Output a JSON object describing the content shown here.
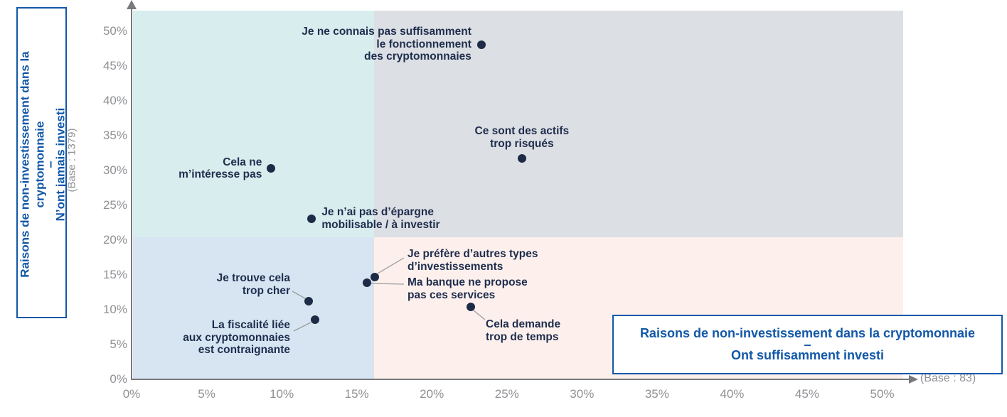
{
  "chart_data": {
    "type": "scatter",
    "description": "Quadrant scatter plot of reasons for non-investment in cryptocurrency; x-axis = % among those who have invested sufficiently, y-axis = % among those who never invested",
    "x_axis": {
      "ticks": [
        "0%",
        "5%",
        "10%",
        "15%",
        "20%",
        "25%",
        "30%",
        "35%",
        "40%",
        "45%",
        "50%"
      ],
      "range_percent": [
        0,
        52
      ],
      "base_label": "(Base : 83)"
    },
    "y_axis": {
      "ticks": [
        "0%",
        "5%",
        "10%",
        "15%",
        "20%",
        "25%",
        "30%",
        "35%",
        "40%",
        "45%",
        "50%"
      ],
      "range_percent": [
        0,
        53
      ],
      "base_label": "(Base : 1379)"
    },
    "quadrant_split": {
      "x_percent": 16,
      "y_percent": 20
    },
    "points": [
      {
        "id": "connaissance",
        "x": 23.3,
        "y": 48.0,
        "label": [
          "Je ne connais pas suffisamment",
          "le fonctionnement",
          "des cryptomonnaies"
        ]
      },
      {
        "id": "actifs-risques",
        "x": 26.0,
        "y": 31.6,
        "label": [
          "Ce sont des actifs",
          "trop risqués"
        ]
      },
      {
        "id": "pas-interesse",
        "x": 9.3,
        "y": 30.2,
        "label": [
          "Cela ne",
          "m’intéresse pas"
        ]
      },
      {
        "id": "pas-epargne",
        "x": 12.0,
        "y": 23.0,
        "label": [
          "Je n’ai pas d’épargne",
          "mobilisable / à investir"
        ]
      },
      {
        "id": "prefere-autres",
        "x": 16.2,
        "y": 14.6,
        "label": [
          "Je préfère d’autres types",
          "d’investissements"
        ]
      },
      {
        "id": "banque-services",
        "x": 15.7,
        "y": 13.8,
        "label": [
          "Ma banque ne propose",
          "pas ces services"
        ]
      },
      {
        "id": "trop-cher",
        "x": 11.8,
        "y": 11.1,
        "label": [
          "Je trouve cela",
          "trop cher"
        ]
      },
      {
        "id": "fiscalite",
        "x": 12.2,
        "y": 8.5,
        "label": [
          "La fiscalité liée",
          "aux cryptomonnaies",
          "est contraignante"
        ]
      },
      {
        "id": "trop-temps",
        "x": 22.6,
        "y": 10.3,
        "label": [
          "Cela demande",
          "trop de temps"
        ]
      }
    ]
  },
  "left_box": {
    "title": "Raisons de non-investissement dans la cryptomonnaie",
    "dash": "–",
    "subtitle": "N’ont jamais investi",
    "base": "(Base : 1379)"
  },
  "right_box": {
    "title": "Raisons de non-investissement dans la cryptomonnaie",
    "dash": "–",
    "subtitle": "Ont suffisamment investi"
  },
  "x_base_label": "(Base : 83)",
  "colors": {
    "quad_top_left": "#d7edee",
    "quad_top_right": "#dcdfe3",
    "quad_bottom_left": "#d6e5f1",
    "quad_bottom_right": "#fdf0ec",
    "point": "#1e2b47",
    "point_label_text": "#1f2d4e",
    "title_blue": "#1258a8",
    "axis_text_gray": "#8f9194",
    "axis_line_gray": "#77797c",
    "connector_gray": "#9b9da0"
  }
}
